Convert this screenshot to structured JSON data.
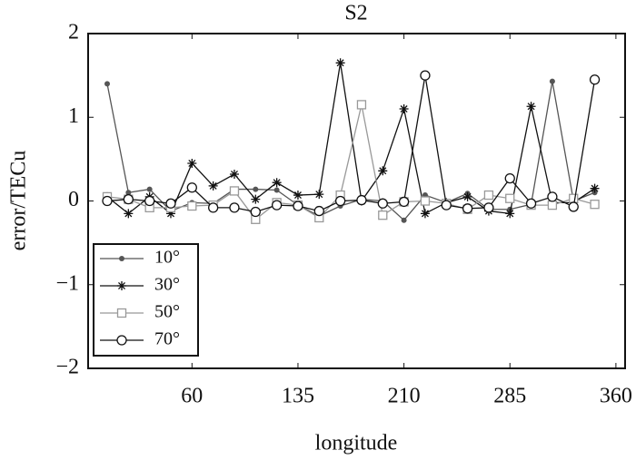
{
  "chart_data": {
    "type": "line",
    "title": "S2",
    "x_label": "longitude",
    "y_label": "error/TECu",
    "x": [
      0,
      15,
      30,
      45,
      60,
      75,
      90,
      105,
      120,
      135,
      150,
      165,
      180,
      195,
      210,
      225,
      240,
      255,
      270,
      285,
      300,
      315,
      330,
      345
    ],
    "xlim": [
      -13.5,
      366.5
    ],
    "xticks": [
      60,
      135,
      210,
      285,
      360
    ],
    "ylim": [
      -2,
      2
    ],
    "yticks": [
      2,
      1,
      0,
      {
        "value": -1,
        "label": "−1"
      },
      {
        "value": -2,
        "label": "−2"
      }
    ],
    "legend": "lower left",
    "series": [
      {
        "name": "10°",
        "color": "#555555",
        "marker": "dot",
        "values": [
          1.4,
          0.1,
          0.14,
          -0.12,
          -0.02,
          -0.03,
          0.14,
          0.14,
          0.13,
          -0.05,
          -0.18,
          -0.06,
          0.02,
          0.0,
          -0.23,
          0.07,
          -0.02,
          0.09,
          -0.1,
          -0.1,
          -0.04,
          1.43,
          0.0,
          0.1
        ]
      },
      {
        "name": "30°",
        "color": "#111111",
        "marker": "star",
        "values": [
          0.05,
          -0.15,
          0.05,
          -0.15,
          0.45,
          0.18,
          0.32,
          0.02,
          0.22,
          0.07,
          0.08,
          1.65,
          0.0,
          0.36,
          1.1,
          -0.15,
          -0.02,
          0.05,
          -0.12,
          -0.15,
          1.13,
          -0.02,
          -0.02,
          0.15
        ]
      },
      {
        "name": "50°",
        "color": "#999999",
        "marker": "square",
        "values": [
          0.05,
          0.02,
          -0.08,
          -0.08,
          -0.06,
          -0.05,
          0.12,
          -0.22,
          -0.02,
          -0.05,
          -0.2,
          0.07,
          1.15,
          -0.17,
          -0.01,
          0.0,
          -0.03,
          -0.1,
          0.07,
          0.03,
          -0.05,
          -0.05,
          0.03,
          -0.04
        ]
      },
      {
        "name": "70°",
        "color": "#111111",
        "marker": "circle",
        "values": [
          0.0,
          0.02,
          0.0,
          -0.03,
          0.16,
          -0.08,
          -0.08,
          -0.13,
          -0.05,
          -0.06,
          -0.12,
          0.0,
          0.01,
          -0.03,
          -0.01,
          1.5,
          -0.05,
          -0.09,
          -0.08,
          0.27,
          -0.03,
          0.05,
          -0.07,
          1.45
        ]
      }
    ]
  }
}
